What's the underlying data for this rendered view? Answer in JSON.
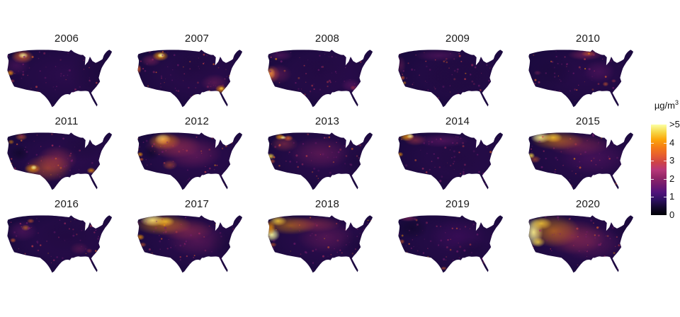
{
  "legend": {
    "title_base": "µg/m",
    "title_sup": "3",
    "labels": [
      ">5",
      "4",
      "3",
      "2",
      "1",
      "0"
    ],
    "colormap_stops": [
      "#000004",
      "#12082d",
      "#2d1060",
      "#50127b",
      "#721a6e",
      "#932667",
      "#b73779",
      "#cf4446",
      "#e8602d",
      "#f57d15",
      "#fca50a",
      "#f6d746",
      "#fcffa4"
    ]
  },
  "figure": {
    "background": "#ffffff",
    "base_color": "#1a0a3e",
    "speckle_colors": [
      "#781c6d",
      "#a52c60",
      "#cf4446",
      "#ed6925",
      "#fb9b06"
    ],
    "years": [
      {
        "label": "2006",
        "blobs": [
          [
            100,
            45,
            105,
            55,
            "#57106e",
            0.28
          ],
          [
            30,
            16,
            18,
            11,
            "#ed6925",
            0.75
          ],
          [
            31,
            14,
            8,
            5,
            "#fcffa4",
            0.8
          ],
          [
            11,
            42,
            6,
            5,
            "#fb9b06",
            0.85
          ],
          [
            14,
            55,
            4,
            3,
            "#cf4446",
            0.55
          ],
          [
            20,
            30,
            22,
            16,
            "#781c6d",
            0.35
          ],
          [
            150,
            42,
            48,
            38,
            "#150934",
            0.45
          ]
        ]
      },
      {
        "label": "2007",
        "blobs": [
          [
            100,
            45,
            105,
            55,
            "#57106e",
            0.28
          ],
          [
            42,
            15,
            13,
            8,
            "#fb9b06",
            0.85
          ],
          [
            43,
            14,
            6,
            4,
            "#fcffa4",
            0.9
          ],
          [
            27,
            22,
            16,
            10,
            "#a52c60",
            0.45
          ],
          [
            8,
            36,
            4,
            7,
            "#ed6925",
            0.75
          ],
          [
            138,
            68,
            9,
            7,
            "#fb9b06",
            0.85
          ],
          [
            139,
            67,
            4,
            3,
            "#f6d746",
            0.85
          ],
          [
            128,
            58,
            22,
            14,
            "#a52c60",
            0.35
          ],
          [
            95,
            35,
            40,
            28,
            "#150934",
            0.4
          ]
        ]
      },
      {
        "label": "2008",
        "blobs": [
          [
            100,
            45,
            105,
            55,
            "#57106e",
            0.28
          ],
          [
            11,
            43,
            7,
            9,
            "#f6d746",
            0.9
          ],
          [
            12,
            44,
            13,
            14,
            "#ed6925",
            0.6
          ],
          [
            22,
            44,
            22,
            16,
            "#a52c60",
            0.35
          ],
          [
            25,
            14,
            20,
            9,
            "#781c6d",
            0.45
          ],
          [
            138,
            62,
            16,
            11,
            "#781c6d",
            0.45
          ],
          [
            141,
            66,
            5,
            4,
            "#cf4446",
            0.5
          ],
          [
            90,
            40,
            45,
            30,
            "#150934",
            0.35
          ]
        ]
      },
      {
        "label": "2009",
        "blobs": [
          [
            100,
            45,
            105,
            55,
            "#57106e",
            0.24
          ],
          [
            13,
            50,
            4,
            4,
            "#ed6925",
            0.65
          ],
          [
            16,
            58,
            3,
            3,
            "#fb9b06",
            0.6
          ],
          [
            70,
            14,
            38,
            10,
            "#781c6d",
            0.4
          ],
          [
            10,
            30,
            8,
            15,
            "#a52c60",
            0.3
          ],
          [
            100,
            45,
            60,
            35,
            "#150934",
            0.4
          ]
        ]
      },
      {
        "label": "2010",
        "blobs": [
          [
            100,
            45,
            105,
            55,
            "#57106e",
            0.24
          ],
          [
            96,
            13,
            28,
            9,
            "#a52c60",
            0.5
          ],
          [
            101,
            11,
            12,
            5,
            "#ed6925",
            0.5
          ],
          [
            128,
            60,
            5,
            4,
            "#ed6925",
            0.55
          ],
          [
            141,
            55,
            4,
            3,
            "#cf4446",
            0.5
          ],
          [
            118,
            40,
            25,
            18,
            "#781c6d",
            0.35
          ],
          [
            45,
            40,
            35,
            25,
            "#150934",
            0.4
          ],
          [
            20,
            42,
            6,
            4,
            "#a52c60",
            0.4
          ]
        ]
      },
      {
        "label": "2011",
        "blobs": [
          [
            100,
            45,
            105,
            55,
            "#57106e",
            0.3
          ],
          [
            70,
            62,
            38,
            22,
            "#ed6925",
            0.5
          ],
          [
            46,
            63,
            13,
            8,
            "#fb9b06",
            0.75
          ],
          [
            48,
            61,
            5,
            4,
            "#fcffa4",
            0.8
          ],
          [
            85,
            48,
            32,
            22,
            "#cf4446",
            0.4
          ],
          [
            139,
            66,
            7,
            5,
            "#fb9b06",
            0.75
          ],
          [
            28,
            12,
            10,
            6,
            "#ed6925",
            0.55
          ],
          [
            12,
            20,
            5,
            4,
            "#fb9b06",
            0.55
          ],
          [
            25,
            38,
            16,
            13,
            "#0a0722",
            0.55
          ],
          [
            120,
            30,
            35,
            22,
            "#150934",
            0.35
          ]
        ]
      },
      {
        "label": "2012",
        "blobs": [
          [
            100,
            45,
            105,
            55,
            "#57106e",
            0.3
          ],
          [
            46,
            16,
            13,
            9,
            "#fcffa4",
            0.9
          ],
          [
            49,
            19,
            26,
            14,
            "#fb9b06",
            0.65
          ],
          [
            62,
            26,
            45,
            20,
            "#cf4446",
            0.45
          ],
          [
            92,
            38,
            48,
            26,
            "#a52c60",
            0.4
          ],
          [
            10,
            40,
            5,
            4,
            "#fb9b06",
            0.75
          ],
          [
            12,
            48,
            4,
            3,
            "#ed6925",
            0.65
          ],
          [
            27,
            37,
            14,
            12,
            "#0a0722",
            0.5
          ],
          [
            57,
            57,
            12,
            8,
            "#ed6925",
            0.45
          ]
        ]
      },
      {
        "label": "2013",
        "blobs": [
          [
            100,
            45,
            105,
            55,
            "#57106e",
            0.3
          ],
          [
            25,
            12,
            8,
            5,
            "#fb9b06",
            0.8
          ],
          [
            38,
            14,
            8,
            5,
            "#ed6925",
            0.75
          ],
          [
            30,
            13,
            5,
            3,
            "#fcffa4",
            0.85
          ],
          [
            10,
            43,
            7,
            5,
            "#f6d746",
            0.85
          ],
          [
            13,
            51,
            5,
            4,
            "#ed6925",
            0.55
          ],
          [
            32,
            23,
            22,
            13,
            "#cf4446",
            0.4
          ],
          [
            88,
            38,
            48,
            26,
            "#a52c60",
            0.35
          ],
          [
            150,
            50,
            35,
            28,
            "#150934",
            0.4
          ]
        ]
      },
      {
        "label": "2014",
        "blobs": [
          [
            100,
            45,
            105,
            55,
            "#57106e",
            0.26
          ],
          [
            20,
            12,
            12,
            7,
            "#fb9b06",
            0.8
          ],
          [
            25,
            11,
            6,
            4,
            "#fcffa4",
            0.85
          ],
          [
            9,
            40,
            5,
            4,
            "#fb9b06",
            0.7
          ],
          [
            33,
            17,
            18,
            9,
            "#cf4446",
            0.45
          ],
          [
            75,
            18,
            42,
            11,
            "#781c6d",
            0.45
          ],
          [
            100,
            45,
            45,
            28,
            "#150934",
            0.35
          ]
        ]
      },
      {
        "label": "2015",
        "blobs": [
          [
            100,
            45,
            105,
            55,
            "#57106e",
            0.3
          ],
          [
            25,
            13,
            16,
            9,
            "#fcffa4",
            0.9
          ],
          [
            45,
            13,
            15,
            8,
            "#f6d746",
            0.85
          ],
          [
            52,
            18,
            42,
            15,
            "#fb9b06",
            0.5
          ],
          [
            10,
            42,
            6,
            5,
            "#f6d746",
            0.85
          ],
          [
            16,
            48,
            9,
            6,
            "#ed6925",
            0.5
          ],
          [
            85,
            25,
            50,
            18,
            "#cf4446",
            0.35
          ],
          [
            110,
            45,
            55,
            28,
            "#781c6d",
            0.3
          ]
        ]
      },
      {
        "label": "2016",
        "blobs": [
          [
            100,
            45,
            105,
            55,
            "#57106e",
            0.27
          ],
          [
            35,
            25,
            7,
            5,
            "#fb9b06",
            0.65
          ],
          [
            15,
            45,
            5,
            4,
            "#ed6925",
            0.65
          ],
          [
            43,
            14,
            6,
            4,
            "#ed6925",
            0.55
          ],
          [
            30,
            30,
            24,
            17,
            "#781c6d",
            0.4
          ],
          [
            120,
            58,
            15,
            10,
            "#a52c60",
            0.3
          ],
          [
            136,
            62,
            5,
            4,
            "#cf4446",
            0.45
          ],
          [
            100,
            40,
            45,
            28,
            "#150934",
            0.38
          ]
        ]
      },
      {
        "label": "2017",
        "blobs": [
          [
            100,
            45,
            105,
            55,
            "#57106e",
            0.3
          ],
          [
            30,
            13,
            20,
            10,
            "#fcffa4",
            0.92
          ],
          [
            50,
            15,
            15,
            8,
            "#f6d746",
            0.85
          ],
          [
            46,
            20,
            46,
            17,
            "#fb9b06",
            0.55
          ],
          [
            10,
            40,
            7,
            5,
            "#fb9b06",
            0.75
          ],
          [
            14,
            52,
            6,
            4,
            "#ed6925",
            0.55
          ],
          [
            82,
            28,
            45,
            18,
            "#cf4446",
            0.4
          ],
          [
            100,
            45,
            48,
            26,
            "#a52c60",
            0.3
          ],
          [
            150,
            52,
            32,
            26,
            "#150934",
            0.45
          ]
        ]
      },
      {
        "label": "2018",
        "blobs": [
          [
            100,
            45,
            105,
            55,
            "#57106e",
            0.3
          ],
          [
            12,
            36,
            13,
            11,
            "#fcffa4",
            0.92
          ],
          [
            22,
            14,
            14,
            8,
            "#f6d746",
            0.85
          ],
          [
            10,
            25,
            8,
            12,
            "#fb9b06",
            0.75
          ],
          [
            42,
            21,
            40,
            15,
            "#fb9b06",
            0.5
          ],
          [
            78,
            19,
            45,
            13,
            "#cf4446",
            0.4
          ],
          [
            98,
            40,
            46,
            26,
            "#a52c60",
            0.3
          ],
          [
            14,
            52,
            6,
            4,
            "#ed6925",
            0.55
          ],
          [
            150,
            55,
            32,
            26,
            "#150934",
            0.4
          ]
        ]
      },
      {
        "label": "2019",
        "blobs": [
          [
            100,
            45,
            105,
            55,
            "#57106e",
            0.24
          ],
          [
            28,
            26,
            24,
            17,
            "#0a0722",
            0.5
          ],
          [
            12,
            47,
            4,
            4,
            "#ed6925",
            0.6
          ],
          [
            22,
            10,
            16,
            5,
            "#a52c60",
            0.5
          ],
          [
            100,
            38,
            45,
            28,
            "#57106e",
            0.3
          ],
          [
            78,
            90,
            5,
            3,
            "#ed6925",
            0.55
          ],
          [
            143,
            80,
            4,
            3,
            "#cf4446",
            0.5
          ],
          [
            120,
            60,
            30,
            20,
            "#150934",
            0.35
          ]
        ]
      },
      {
        "label": "2020",
        "blobs": [
          [
            100,
            45,
            105,
            55,
            "#57106e",
            0.3
          ],
          [
            14,
            32,
            15,
            23,
            "#fcffa4",
            0.92
          ],
          [
            26,
            18,
            17,
            10,
            "#f6d746",
            0.85
          ],
          [
            21,
            48,
            11,
            8,
            "#f6d746",
            0.8
          ],
          [
            46,
            30,
            42,
            26,
            "#fb9b06",
            0.55
          ],
          [
            78,
            40,
            50,
            28,
            "#cf4446",
            0.4
          ],
          [
            105,
            50,
            50,
            28,
            "#a52c60",
            0.28
          ],
          [
            160,
            28,
            25,
            20,
            "#150934",
            0.5
          ]
        ]
      }
    ]
  },
  "chart_data": {
    "type": "heatmap",
    "subtype": "small-multiple choropleth/raster maps of the contiguous United States",
    "facets": [
      "2006",
      "2007",
      "2008",
      "2009",
      "2010",
      "2011",
      "2012",
      "2013",
      "2014",
      "2015",
      "2016",
      "2017",
      "2018",
      "2019",
      "2020"
    ],
    "grid": {
      "rows": 3,
      "cols": 5
    },
    "units": "µg/m³",
    "legend_title": "µg/m³",
    "legend_ticks": [
      ">5",
      "4",
      "3",
      "2",
      "1",
      "0"
    ],
    "value_range": [
      0,
      5
    ],
    "colormap": "inferno (black-purple low to orange to pale-yellow high)",
    "legend_position": "right",
    "facet_high_regions": {
      "2006": "hotspots in Pacific Northwest/Idaho and northern California; rest dark",
      "2007": "bright spot northern Rockies (Idaho/Montana); bright spot Georgia/Florida southeast",
      "2008": "bright northern California; elsewhere dark purple",
      "2009": "mostly low/dark; small southern California spots",
      "2010": "mostly low/dark; warm band upper Midwest/northern plains",
      "2011": "elevated Southwest (Arizona/New Mexico), Texas and Southeast; dark Great Basin",
      "2012": "very bright Idaho/northern Rockies; elevated across West and plains",
      "2013": "bright Pacific Northwest and northern California; hazy center",
      "2014": "bright Pacific Northwest corner; purple northern tier",
      "2015": "very bright Pacific Northwest and northern Rockies, fading east across northern plains",
      "2016": "moderate; scattered western hotspots and warm Southeast patch",
      "2017": "very bright Pacific Northwest/Montana; orange across much of the West",
      "2018": "very bright northern California/Oregon/Washington; orange northern tier",
      "2019": "mostly low/dark overall",
      "2020": "extreme pale-yellow over entire West Coast; orange across interior West"
    }
  }
}
